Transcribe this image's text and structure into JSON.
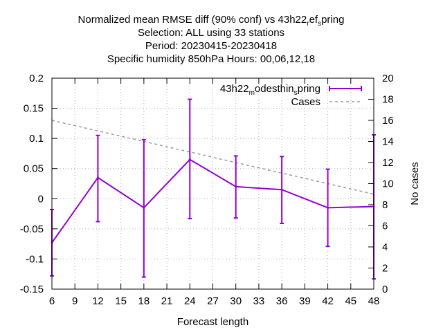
{
  "chart_data": {
    "type": "line",
    "title_lines": [
      {
        "parts": [
          [
            "Normalized mean RMSE diff (90% conf) vs 43h22",
            false
          ],
          [
            "r",
            true
          ],
          [
            "ef",
            false
          ],
          [
            "s",
            true
          ],
          [
            "pring",
            false
          ]
        ]
      },
      {
        "text": "Selection: ALL using    33 stations"
      },
      {
        "text": "Period: 20230415-20230418"
      },
      {
        "text": "Specific humidity 850hPa   Hours:  00,06,12,18"
      }
    ],
    "xlabel": "Forecast length",
    "ylabel": "",
    "y2label": "No cases",
    "xlim": [
      6,
      48
    ],
    "ylim": [
      -0.15,
      0.2
    ],
    "y2lim": [
      0,
      20
    ],
    "x_ticks": [
      "6",
      "9",
      "12",
      "15",
      "18",
      "21",
      "24",
      "27",
      "30",
      "33",
      "36",
      "39",
      "42",
      "45",
      "48"
    ],
    "y_ticks": [
      "-0.15",
      "-0.1",
      "-0.05",
      "0",
      "0.05",
      "0.1",
      "0.15",
      "0.2"
    ],
    "y2_ticks": [
      "0",
      "2",
      "4",
      "6",
      "8",
      "10",
      "12",
      "14",
      "16",
      "18",
      "20"
    ],
    "grid": true,
    "legend_position": "top-right",
    "series": [
      {
        "name_parts": [
          [
            "43h22",
            false
          ],
          [
            "m",
            true
          ],
          [
            "odesthin",
            false
          ],
          [
            "s",
            true
          ],
          [
            "pring",
            false
          ]
        ],
        "color": "#9400d3",
        "axis": "y",
        "style": "errorbars",
        "x": [
          6,
          12,
          18,
          24,
          30,
          36,
          42,
          48
        ],
        "y": [
          -0.073,
          0.035,
          -0.015,
          0.065,
          0.02,
          0.015,
          -0.015,
          -0.013
        ],
        "y_low": [
          -0.128,
          -0.038,
          -0.13,
          -0.033,
          -0.032,
          -0.041,
          -0.079,
          -0.133
        ],
        "y_high": [
          -0.018,
          0.105,
          0.098,
          0.165,
          0.071,
          0.07,
          0.049,
          0.106
        ]
      },
      {
        "name": "Cases",
        "color": "#999999",
        "axis": "y2",
        "style": "dashed",
        "x": [
          6,
          12,
          18,
          24,
          30,
          36,
          42,
          48
        ],
        "y": [
          16,
          15,
          14,
          13,
          12,
          11,
          10,
          9
        ]
      }
    ]
  }
}
